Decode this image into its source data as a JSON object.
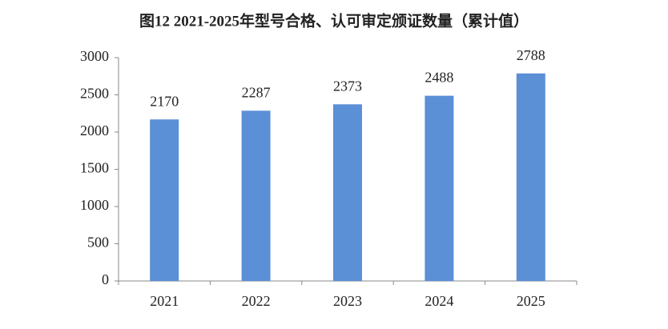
{
  "chart_data": {
    "type": "bar",
    "title": "图12 2021-2025年型号合格、认可审定颁证数量（累计值）",
    "categories": [
      "2021",
      "2022",
      "2023",
      "2024",
      "2025"
    ],
    "values": [
      2170,
      2287,
      2373,
      2488,
      2788
    ],
    "color": "#5b8fd6",
    "ylim": [
      0,
      3000
    ],
    "yticks": [
      0,
      500,
      1000,
      1500,
      2000,
      2500,
      3000
    ],
    "grid": false
  }
}
